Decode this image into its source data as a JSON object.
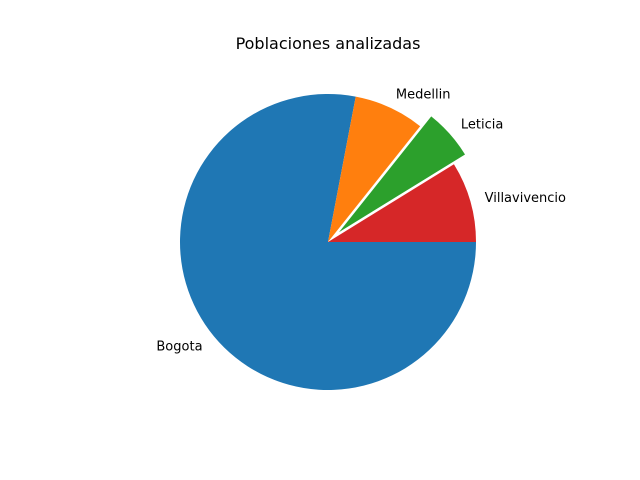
{
  "chart_data": {
    "type": "pie",
    "title": "Poblaciones analizadas",
    "categories": [
      "Bogota",
      "Medellin",
      "Leticia",
      "Villavivencio"
    ],
    "values": [
      78,
      7.7,
      5.5,
      8.8
    ],
    "colors": [
      "#1f77b4",
      "#ff7f0e",
      "#2ca02c",
      "#d62728"
    ],
    "explode": [
      0,
      0,
      0.1,
      0
    ],
    "start_angle": 0,
    "counterclock": false,
    "legend": "none"
  }
}
